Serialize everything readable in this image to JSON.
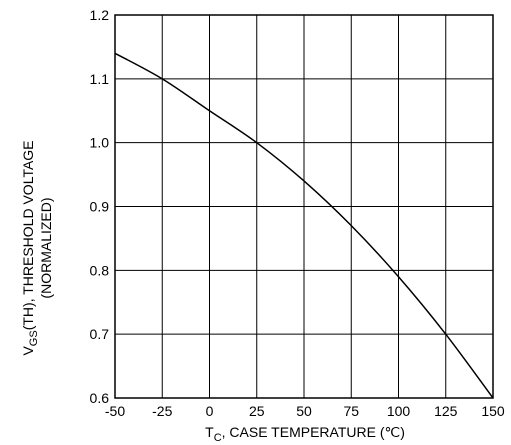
{
  "chart_data": {
    "type": "line",
    "title": "",
    "xlabel": {
      "prefix": "T",
      "sub": "C",
      "suffix": ", CASE TEMPERATURE (℃)"
    },
    "ylabel": {
      "line1_prefix": "V",
      "line1_sub": "GS",
      "line1_suffix": "(TH), THRESHOLD VOLTAGE",
      "line2": "(NORMALIZED)"
    },
    "xlim": [
      -50,
      150
    ],
    "ylim": [
      0.6,
      1.2
    ],
    "x_ticks": [
      -50,
      -25,
      0,
      25,
      50,
      75,
      100,
      125,
      150
    ],
    "x_tick_labels": [
      "-50",
      "-25",
      "0",
      "25",
      "50",
      "75",
      "100",
      "125",
      "150"
    ],
    "y_ticks": [
      0.6,
      0.7,
      0.8,
      0.9,
      1.0,
      1.1,
      1.2
    ],
    "y_tick_labels": [
      "0.6",
      "0.7",
      "0.8",
      "0.9",
      "1.0",
      "1.1",
      "1.2"
    ],
    "grid": true,
    "legend": "none",
    "series": [
      {
        "x": [
          -50,
          -25,
          0,
          25,
          50,
          75,
          100,
          125,
          150
        ],
        "y": [
          1.14,
          1.1,
          1.05,
          1.0,
          0.94,
          0.87,
          0.79,
          0.7,
          0.6
        ]
      }
    ],
    "colors": {
      "line": "#000000",
      "grid": "#000000",
      "background": "#ffffff"
    }
  }
}
